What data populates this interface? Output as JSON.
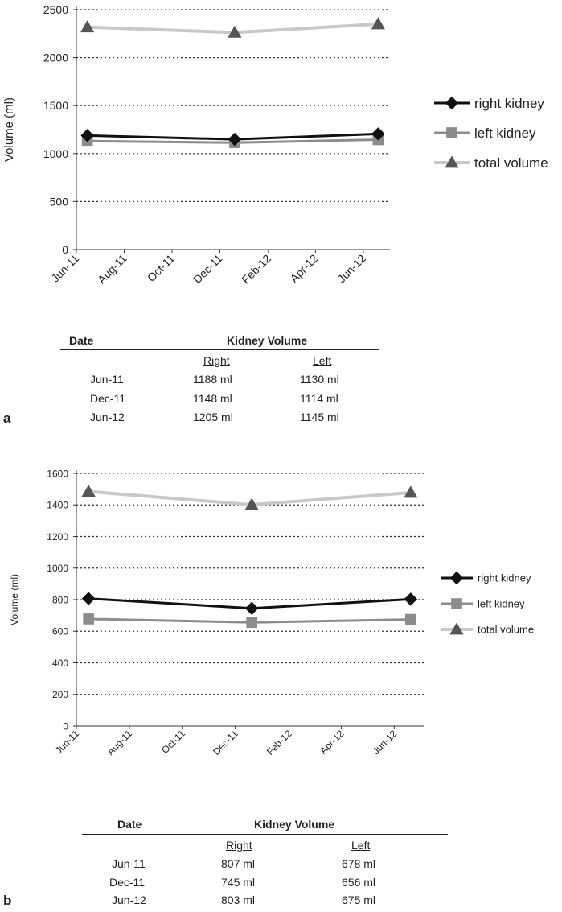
{
  "chart_data": [
    {
      "type": "line",
      "ylabel": "Volume (ml)",
      "xlabel": "",
      "ylim": [
        0,
        2500
      ],
      "yticks": [
        0,
        500,
        1000,
        1500,
        2000,
        2500
      ],
      "xtick_labels": [
        "Jun-11",
        "Aug-11",
        "Oct-11",
        "Dec-11",
        "Feb-12",
        "Apr-12",
        "Jun-12"
      ],
      "grid": "horizontal dotted",
      "legend_position": "right",
      "x": [
        "2011-06-15",
        "2011-12-20",
        "2012-06-20"
      ],
      "series": [
        {
          "name": "right kidney",
          "marker": "diamond",
          "color": "#111111",
          "values": [
            1188,
            1148,
            1205
          ]
        },
        {
          "name": "left kidney",
          "marker": "square",
          "color": "#8c8c8c",
          "values": [
            1130,
            1114,
            1145
          ]
        },
        {
          "name": "total volume",
          "marker": "triangle",
          "color": "#c8c8c8",
          "marker_color": "#555555",
          "values": [
            2318,
            2262,
            2350
          ]
        }
      ],
      "table": {
        "date_header": "Date",
        "volume_header": "Kidney Volume",
        "right_header": "Right",
        "left_header": "Left",
        "rows": [
          {
            "date": "Jun-11",
            "right": "1188 ml",
            "left": "1130 ml"
          },
          {
            "date": "Dec-11",
            "right": "1148 ml",
            "left": "1114 ml"
          },
          {
            "date": "Jun-12",
            "right": "1205 ml",
            "left": "1145 ml"
          }
        ]
      },
      "panel_label": "a"
    },
    {
      "type": "line",
      "ylabel": "Volume (ml)",
      "xlabel": "",
      "ylim": [
        0,
        1600
      ],
      "yticks": [
        0,
        200,
        400,
        600,
        800,
        1000,
        1200,
        1400,
        1600
      ],
      "xtick_labels": [
        "Jun-11",
        "Aug-11",
        "Oct-11",
        "Dec-11",
        "Feb-12",
        "Apr-12",
        "Jun-12"
      ],
      "grid": "horizontal dotted",
      "legend_position": "right",
      "x": [
        "2011-06-15",
        "2011-12-20",
        "2012-06-20"
      ],
      "series": [
        {
          "name": "right kidney",
          "marker": "diamond",
          "color": "#111111",
          "values": [
            807,
            745,
            803
          ]
        },
        {
          "name": "left kidney",
          "marker": "square",
          "color": "#8c8c8c",
          "values": [
            678,
            656,
            675
          ]
        },
        {
          "name": "total volume",
          "marker": "triangle",
          "color": "#c8c8c8",
          "marker_color": "#555555",
          "values": [
            1485,
            1401,
            1478
          ]
        }
      ],
      "table": {
        "date_header": "Date",
        "volume_header": "Kidney Volume",
        "right_header": "Right",
        "left_header": "Left",
        "rows": [
          {
            "date": "Jun-11",
            "right": "807 ml",
            "left": "678 ml"
          },
          {
            "date": "Dec-11",
            "right": "745 ml",
            "left": "656 ml"
          },
          {
            "date": "Jun-12",
            "right": "803 ml",
            "left": "675 ml"
          }
        ]
      },
      "panel_label": "b"
    }
  ]
}
